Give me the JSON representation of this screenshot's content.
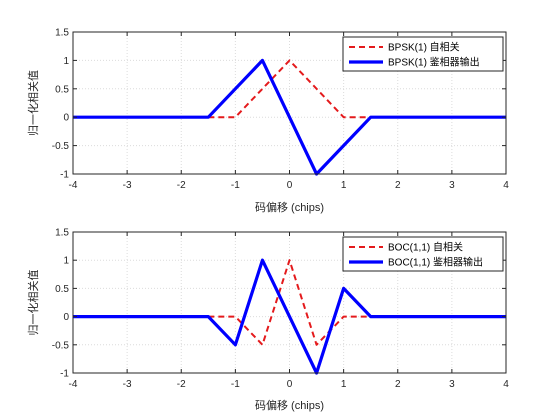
{
  "chart_data": [
    {
      "type": "line",
      "xlabel": "码偏移 (chips)",
      "ylabel": "归一化相关值",
      "xlim": [
        -4,
        4
      ],
      "ylim": [
        -1,
        1.5
      ],
      "xticks": [
        -4,
        -3,
        -2,
        -1,
        0,
        1,
        2,
        3,
        4
      ],
      "yticks": [
        -1,
        -0.5,
        0,
        0.5,
        1,
        1.5
      ],
      "xtick_labels": [
        "-4",
        "-3",
        "-2",
        "-1",
        "0",
        "1",
        "2",
        "3",
        "4"
      ],
      "ytick_labels": [
        "-1",
        "-0.5",
        "0",
        "0.5",
        "1",
        "1.5"
      ],
      "grid": true,
      "legend_position": "top-right",
      "series": [
        {
          "name": "BPSK(1) 自相关",
          "color": "#e41a1c",
          "style": "dashed",
          "x": [
            -1.5,
            -1,
            0,
            1,
            1.5
          ],
          "y": [
            0,
            0,
            1,
            0,
            0
          ]
        },
        {
          "name": "BPSK(1) 鉴相器输出",
          "color": "#0000ff",
          "style": "solid",
          "x": [
            -4,
            -1.5,
            -0.5,
            0.5,
            1.5,
            4
          ],
          "y": [
            0,
            0,
            1,
            -1,
            0,
            0
          ]
        }
      ]
    },
    {
      "type": "line",
      "xlabel": "码偏移 (chips)",
      "ylabel": "归一化相关值",
      "xlim": [
        -4,
        4
      ],
      "ylim": [
        -1,
        1.5
      ],
      "xticks": [
        -4,
        -3,
        -2,
        -1,
        0,
        1,
        2,
        3,
        4
      ],
      "yticks": [
        -1,
        -0.5,
        0,
        0.5,
        1,
        1.5
      ],
      "xtick_labels": [
        "-4",
        "-3",
        "-2",
        "-1",
        "0",
        "1",
        "2",
        "3",
        "4"
      ],
      "ytick_labels": [
        "-1",
        "-0.5",
        "0",
        "0.5",
        "1",
        "1.5"
      ],
      "grid": true,
      "legend_position": "top-right",
      "series": [
        {
          "name": "BOC(1,1) 自相关",
          "color": "#e41a1c",
          "style": "dashed",
          "x": [
            -1.5,
            -1,
            -0.5,
            0,
            0.5,
            1,
            1.5
          ],
          "y": [
            0,
            0,
            -0.5,
            1,
            -0.5,
            0,
            0
          ]
        },
        {
          "name": "BOC(1,1) 鉴相器输出",
          "color": "#0000ff",
          "style": "solid",
          "x": [
            -4,
            -1.5,
            -1,
            -0.5,
            0,
            0.5,
            1,
            1.5,
            4
          ],
          "y": [
            0,
            0,
            -0.5,
            1,
            0,
            -1,
            0.5,
            0,
            0
          ]
        }
      ]
    }
  ]
}
